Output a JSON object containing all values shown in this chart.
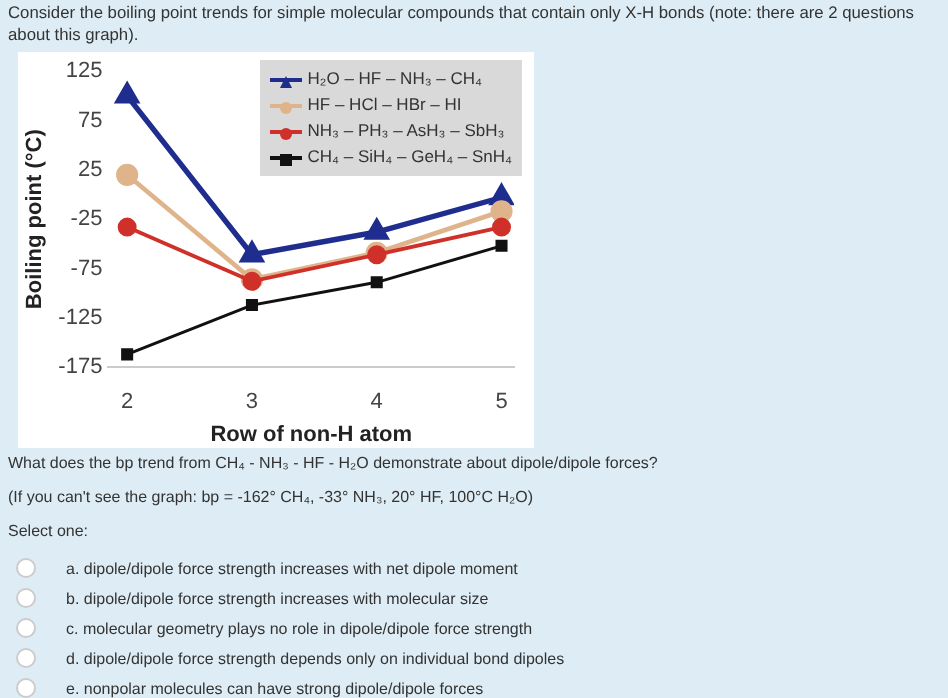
{
  "chart_data": {
    "type": "line",
    "title": "Consider the boiling point trends for simple molecular compounds that contain only X-H bonds (note: there are 2 questions about this graph).",
    "xlabel": "Row of non-H atom",
    "ylabel": "Boiling point (°C)",
    "x": [
      2,
      3,
      4,
      5
    ],
    "series": [
      {
        "name": "H₂O – HF – NH₃ – CH₄",
        "color": "#1f2d8f",
        "marker": "triangle",
        "values": [
          100,
          -61,
          -38,
          -3
        ]
      },
      {
        "name": "HF – HCl – HBr – HI",
        "color": "#e0b48a",
        "marker": "circle",
        "values": [
          20,
          -86,
          -59,
          -17
        ]
      },
      {
        "name": "NH₃ – PH₃ – AsH₃ – SbH₃",
        "color": "#d0302a",
        "marker": "circle",
        "values": [
          -33,
          -88,
          -61,
          -33
        ]
      },
      {
        "name": "CH₄ – SiH₄ – GeH₄ – SnH₄",
        "color": "#111111",
        "marker": "square",
        "values": [
          -162,
          -112,
          -89,
          -52
        ]
      }
    ],
    "xlim": [
      1.85,
      5.1
    ],
    "xticks": [
      2,
      3,
      4,
      5
    ],
    "ylim": [
      -175,
      125
    ],
    "yticks": [
      125,
      75,
      25,
      -25,
      -75,
      -125,
      -175
    ],
    "legend": "top right",
    "annotations": [
      "What does the bp trend from CH₄ - NH₃ - HF - H₂O demonstrate about dipole/dipole forces?",
      "(If you can't see the graph: bp = -162° CH₄,  -33° NH₃,  20° HF,  100°C H₂O)",
      "Select one:",
      "a.  dipole/dipole force strength increases with net dipole moment",
      "b.  dipole/dipole force strength increases with molecular size",
      "c.  molecular geometry plays no role in dipole/dipole force strength",
      "d.  dipole/dipole force strength depends only on individual bond dipoles",
      "e.  nonpolar molecules can have strong dipole/dipole forces"
    ]
  }
}
